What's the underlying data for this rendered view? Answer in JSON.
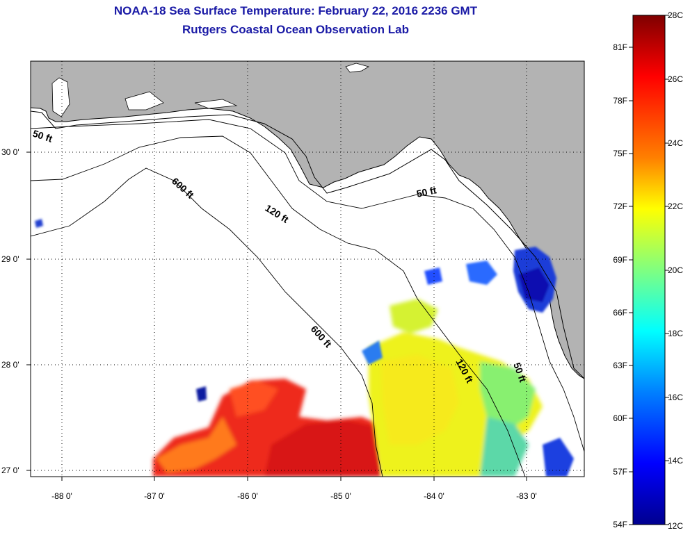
{
  "title": "NOAA-18 Sea Surface Temperature:  February 22, 2016 2236 GMT",
  "subtitle": "Rutgers Coastal Ocean Observation Lab",
  "map": {
    "lat_labels": [
      "30 0'",
      "29 0'",
      "28 0'",
      "27 0'"
    ],
    "lon_labels": [
      "-88 0'",
      "-87 0'",
      "-86 0'",
      "-85 0'",
      "-84 0'",
      "-83 0'"
    ],
    "contours": [
      "50 ft",
      "50 ft",
      "50 ft",
      "120 ft",
      "120 ft",
      "600 ft",
      "600 ft"
    ],
    "land_color": "#b3b3b3",
    "water_color": "#ffffff"
  },
  "colorbar": {
    "celsius": [
      "28C",
      "26C",
      "24C",
      "22C",
      "20C",
      "18C",
      "16C",
      "14C",
      "12C"
    ],
    "fahrenheit": [
      "81F",
      "78F",
      "75F",
      "72F",
      "69F",
      "66F",
      "63F",
      "60F",
      "57F",
      "54F"
    ],
    "colors": [
      "#7f0000",
      "#ff0000",
      "#ff8000",
      "#ffff00",
      "#80ff80",
      "#00ffff",
      "#0080ff",
      "#0000ff",
      "#00008f"
    ]
  }
}
